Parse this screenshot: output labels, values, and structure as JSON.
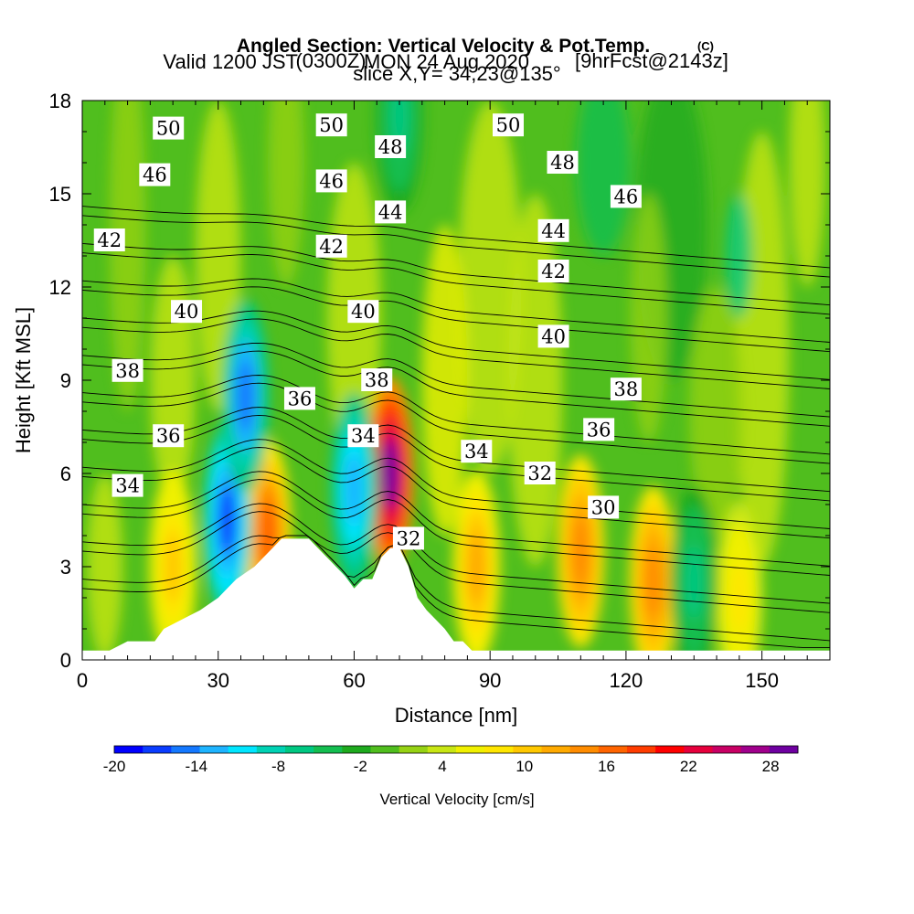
{
  "title": {
    "line1": "Angled Section: Vertical Velocity & Pot.Temp.",
    "line1_suffix": "(C)",
    "line2_a": "Valid 1200 JST",
    "line2_b": "(0300Z)",
    "line2_c": "MON 24 Aug 2020",
    "line2_d": "[9hrFcst@2143z]",
    "line3": "slice X,Y= 34,23@135°"
  },
  "colorbar": {
    "label": "Vertical Velocity [cm/s]",
    "tick_labels": [
      "-20",
      "-14",
      "-8",
      "-2",
      "4",
      "10",
      "16",
      "22",
      "28"
    ],
    "colors": [
      "#0000ff",
      "#0a3cff",
      "#1478ff",
      "#1eb4ff",
      "#00e6ff",
      "#00d2b4",
      "#00c882",
      "#14be50",
      "#1eaa1e",
      "#50be1e",
      "#96d214",
      "#c8e614",
      "#f0f000",
      "#ffe600",
      "#ffc800",
      "#ffaa00",
      "#ff8c00",
      "#ff6400",
      "#ff3c00",
      "#ff0000",
      "#e6003c",
      "#c80064",
      "#a0008c",
      "#6e00a0"
    ]
  },
  "chart_data": {
    "type": "heatmap",
    "title": "Angled Section: Vertical Velocity & Pot.Temp.",
    "xlabel": "Distance [nm]",
    "ylabel": "Height [Kft MSL]",
    "xlim": [
      0,
      165
    ],
    "ylim": [
      0,
      18
    ],
    "xticks": [
      0,
      30,
      60,
      90,
      120,
      150
    ],
    "yticks": [
      0,
      3,
      6,
      9,
      12,
      15,
      18
    ],
    "fill_variable": "Vertical Velocity [cm/s]",
    "fill_range": [
      -20,
      30
    ],
    "contour_variable": "Pot.Temp. (C)",
    "contour_levels": [
      30,
      32,
      34,
      36,
      38,
      40,
      42,
      44,
      46,
      48,
      50
    ],
    "contour_labels": [
      {
        "text": "50",
        "x": 19,
        "y": 17.1
      },
      {
        "text": "50",
        "x": 55,
        "y": 17.2
      },
      {
        "text": "50",
        "x": 94,
        "y": 17.2
      },
      {
        "text": "48",
        "x": 68,
        "y": 16.5
      },
      {
        "text": "48",
        "x": 106,
        "y": 16.0
      },
      {
        "text": "46",
        "x": 16,
        "y": 15.6
      },
      {
        "text": "46",
        "x": 55,
        "y": 15.4
      },
      {
        "text": "46",
        "x": 120,
        "y": 14.9
      },
      {
        "text": "44",
        "x": 68,
        "y": 14.4
      },
      {
        "text": "44",
        "x": 104,
        "y": 13.8
      },
      {
        "text": "42",
        "x": 6,
        "y": 13.5
      },
      {
        "text": "42",
        "x": 55,
        "y": 13.3
      },
      {
        "text": "42",
        "x": 104,
        "y": 12.5
      },
      {
        "text": "40",
        "x": 23,
        "y": 11.2
      },
      {
        "text": "40",
        "x": 62,
        "y": 11.2
      },
      {
        "text": "40",
        "x": 104,
        "y": 10.4
      },
      {
        "text": "38",
        "x": 10,
        "y": 9.3
      },
      {
        "text": "38",
        "x": 65,
        "y": 9.0
      },
      {
        "text": "38",
        "x": 120,
        "y": 8.7
      },
      {
        "text": "36",
        "x": 19,
        "y": 7.2
      },
      {
        "text": "36",
        "x": 48,
        "y": 8.4
      },
      {
        "text": "36",
        "x": 114,
        "y": 7.4
      },
      {
        "text": "34",
        "x": 10,
        "y": 5.6
      },
      {
        "text": "34",
        "x": 62,
        "y": 7.2
      },
      {
        "text": "34",
        "x": 87,
        "y": 6.7
      },
      {
        "text": "32",
        "x": 101,
        "y": 6.0
      },
      {
        "text": "32",
        "x": 72,
        "y": 3.9
      },
      {
        "text": "30",
        "x": 115,
        "y": 4.9
      }
    ],
    "updraft_cores": [
      {
        "x": 68,
        "y": 6.0,
        "value": 28
      },
      {
        "x": 41,
        "y": 4.0,
        "value": 16
      },
      {
        "x": 110,
        "y": 3.5,
        "value": 14
      },
      {
        "x": 126,
        "y": 2.5,
        "value": 14
      },
      {
        "x": 87,
        "y": 3.0,
        "value": 12
      },
      {
        "x": 20,
        "y": 3.0,
        "value": 10
      },
      {
        "x": 145,
        "y": 2.0,
        "value": 8
      }
    ],
    "downdraft_cores": [
      {
        "x": 32,
        "y": 4.5,
        "value": -16
      },
      {
        "x": 60,
        "y": 5.5,
        "value": -12
      },
      {
        "x": 36,
        "y": 8.5,
        "value": -14
      },
      {
        "x": 135,
        "y": 2.5,
        "value": -6
      },
      {
        "x": 70,
        "y": 17.5,
        "value": -6
      }
    ],
    "terrain": [
      [
        0,
        0.3
      ],
      [
        6,
        0.3
      ],
      [
        10,
        0.6
      ],
      [
        16,
        0.6
      ],
      [
        18,
        1.0
      ],
      [
        22,
        1.3
      ],
      [
        26,
        1.6
      ],
      [
        30,
        2.0
      ],
      [
        32,
        2.3
      ],
      [
        34,
        2.6
      ],
      [
        38,
        3.0
      ],
      [
        40,
        3.3
      ],
      [
        42,
        3.6
      ],
      [
        44,
        3.9
      ],
      [
        50,
        3.9
      ],
      [
        52,
        3.6
      ],
      [
        54,
        3.3
      ],
      [
        56,
        3.0
      ],
      [
        58,
        2.7
      ],
      [
        60,
        2.3
      ],
      [
        62,
        2.6
      ],
      [
        64,
        2.6
      ],
      [
        66,
        3.3
      ],
      [
        68,
        3.6
      ],
      [
        70,
        3.6
      ],
      [
        72,
        3.0
      ],
      [
        74,
        2.0
      ],
      [
        76,
        1.6
      ],
      [
        78,
        1.3
      ],
      [
        80,
        1.0
      ],
      [
        82,
        0.6
      ],
      [
        84,
        0.6
      ],
      [
        86,
        0.3
      ],
      [
        165,
        0.3
      ]
    ]
  }
}
